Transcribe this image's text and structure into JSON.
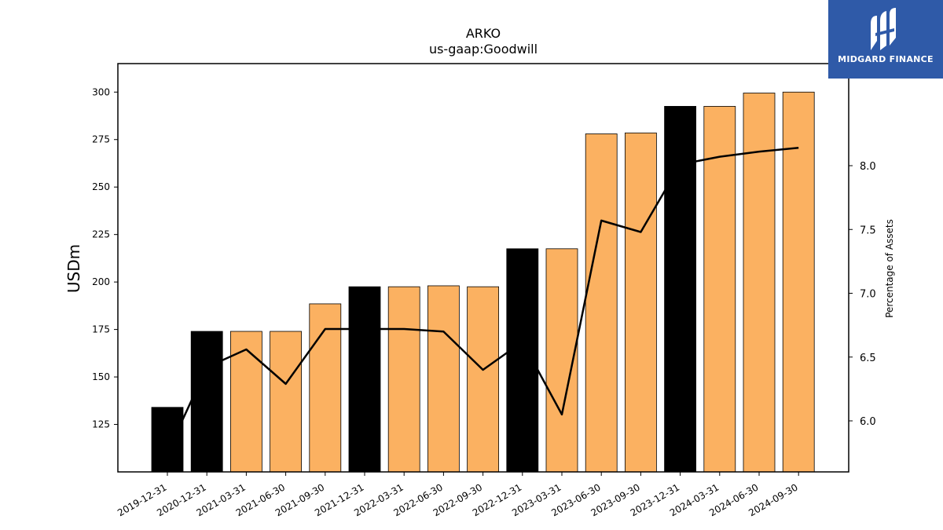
{
  "brand": {
    "name": "MIDGARD FINANCE",
    "bg_color": "#2f5aa8"
  },
  "chart_data": {
    "type": "bar",
    "title": "ARKO",
    "subtitle": "us-gaap:Goodwill",
    "ylabel": "USDm",
    "ylabel_right": "Percentage of Assets",
    "ylim": [
      100,
      315
    ],
    "ylim_right": [
      5.6,
      8.8
    ],
    "yticks": [
      125,
      150,
      175,
      200,
      225,
      250,
      275,
      300
    ],
    "yticks_right": [
      6.0,
      6.5,
      7.0,
      7.5,
      8.0
    ],
    "grid": false,
    "categories": [
      "2019-12-31",
      "2020-12-31",
      "2021-03-31",
      "2021-06-30",
      "2021-09-30",
      "2021-12-31",
      "2022-03-31",
      "2022-06-30",
      "2022-09-30",
      "2022-12-31",
      "2023-03-31",
      "2023-06-30",
      "2023-09-30",
      "2023-12-31",
      "2024-03-31",
      "2024-06-30",
      "2024-09-30"
    ],
    "series": [
      {
        "type": "bar",
        "axis": "left",
        "values": [
          134,
          174,
          174,
          174,
          188.5,
          197.5,
          197.5,
          198,
          197.5,
          217.5,
          217.5,
          278,
          278.5,
          292.5,
          292.5,
          299.5,
          300
        ],
        "colors": [
          "#000000",
          "#000000",
          "#fbb161",
          "#fbb161",
          "#fbb161",
          "#000000",
          "#fbb161",
          "#fbb161",
          "#fbb161",
          "#000000",
          "#fbb161",
          "#fbb161",
          "#fbb161",
          "#000000",
          "#fbb161",
          "#fbb161",
          "#fbb161"
        ]
      },
      {
        "type": "line",
        "axis": "right",
        "color": "#000000",
        "values": [
          5.75,
          6.42,
          6.56,
          6.29,
          6.72,
          6.72,
          6.72,
          6.7,
          6.4,
          6.62,
          6.05,
          7.57,
          7.48,
          8.01,
          8.07,
          8.11,
          8.14
        ]
      }
    ]
  }
}
